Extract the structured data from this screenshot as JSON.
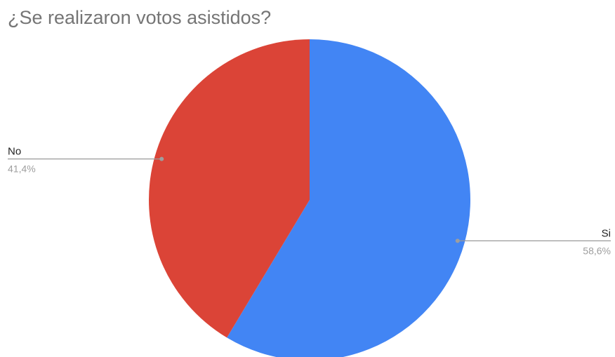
{
  "chart_data": {
    "type": "pie",
    "title": "¿Se realizaron votos asistidos?",
    "slices": [
      {
        "label": "Si",
        "value": 58.6,
        "display": "58,6%",
        "color": "#4285F4"
      },
      {
        "label": "No",
        "value": 41.4,
        "display": "41,4%",
        "color": "#DB4437"
      }
    ],
    "legend": "labels outside slices with leader lines",
    "colors": {
      "title": "#757575",
      "leader_line": "#999999",
      "name_text": "#222222",
      "percent_text": "#9E9E9E"
    }
  }
}
